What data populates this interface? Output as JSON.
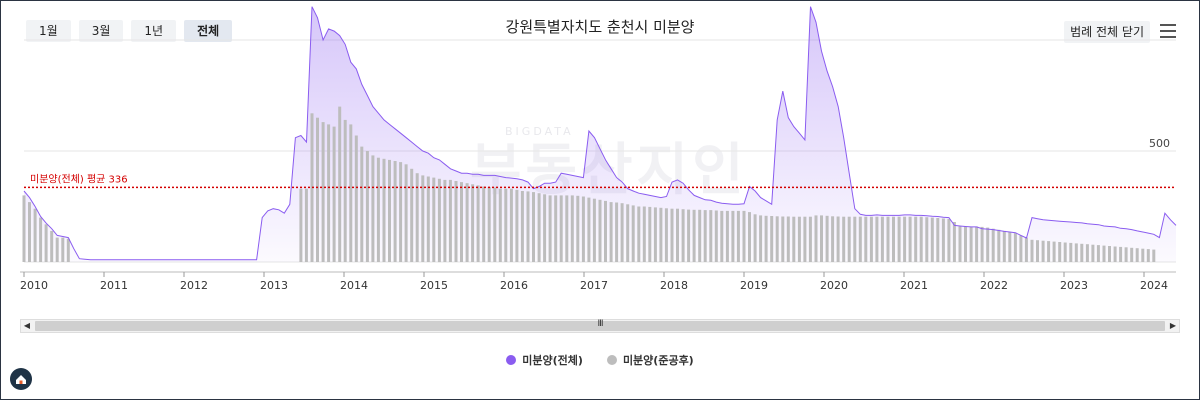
{
  "range_buttons": [
    "1월",
    "3월",
    "1년",
    "전체"
  ],
  "active_range": "전체",
  "title": "강원특별자치도 춘천시 미분양",
  "legend_toggle_label": "범례 전체 닫기",
  "watermark": "부동산지인",
  "watermark_sub": "BIGDATA",
  "legend": [
    {
      "name": "미분양(전체)",
      "color": "#8a5cf0"
    },
    {
      "name": "미분양(준공후)",
      "color": "#bdbdbd"
    }
  ],
  "scroll_grip": "III",
  "chart_data": {
    "type": "area",
    "x_ticks": [
      "2010",
      "2011",
      "2012",
      "2013",
      "2014",
      "2015",
      "2016",
      "2017",
      "2018",
      "2019",
      "2020",
      "2021",
      "2022",
      "2023",
      "2024"
    ],
    "y_tick_labels": [
      "500"
    ],
    "ylim": [
      0,
      1000
    ],
    "average_line": {
      "label": "미분양(전체) 평균 336",
      "value": 336,
      "color": "#d40000"
    },
    "series": [
      {
        "name": "미분양(전체)",
        "type": "area",
        "color": "#8a5cf0",
        "values": [
          320,
          290,
          250,
          205,
          175,
          150,
          120,
          115,
          110,
          60,
          15,
          12,
          10,
          10,
          10,
          10,
          10,
          10,
          10,
          10,
          10,
          10,
          10,
          10,
          10,
          10,
          10,
          10,
          10,
          10,
          10,
          10,
          10,
          10,
          10,
          10,
          10,
          10,
          10,
          10,
          10,
          10,
          10,
          200,
          230,
          240,
          235,
          220,
          260,
          560,
          570,
          540,
          1150,
          1100,
          1000,
          1050,
          1040,
          1020,
          980,
          900,
          870,
          800,
          750,
          700,
          670,
          640,
          620,
          600,
          580,
          560,
          540,
          520,
          500,
          490,
          470,
          460,
          440,
          420,
          410,
          400,
          400,
          395,
          395,
          390,
          390,
          390,
          385,
          380,
          378,
          375,
          370,
          360,
          330,
          340,
          355,
          355,
          360,
          400,
          395,
          390,
          385,
          380,
          590,
          560,
          510,
          460,
          420,
          380,
          360,
          330,
          320,
          310,
          305,
          300,
          295,
          290,
          295,
          360,
          370,
          355,
          325,
          300,
          290,
          280,
          278,
          270,
          265,
          262,
          260,
          260,
          262,
          340,
          320,
          290,
          275,
          260,
          640,
          770,
          650,
          610,
          580,
          550,
          1150,
          1080,
          950,
          860,
          790,
          700,
          560,
          400,
          240,
          215,
          210,
          210,
          212,
          210,
          210,
          210,
          210,
          212,
          212,
          210,
          210,
          208,
          206,
          205,
          202,
          200,
          165,
          162,
          160,
          158,
          158,
          150,
          148,
          146,
          142,
          138,
          135,
          132,
          120,
          108,
          200,
          195,
          190,
          188,
          186,
          184,
          182,
          180,
          178,
          176,
          172,
          170,
          168,
          162,
          160,
          158,
          152,
          150,
          146,
          140,
          135,
          130,
          125,
          110,
          220,
          190,
          165
        ]
      },
      {
        "name": "미분양(준공후)",
        "type": "bar",
        "color": "#bdbdbd",
        "values": [
          300,
          270,
          240,
          200,
          170,
          140,
          110,
          110,
          105,
          0,
          0,
          0,
          0,
          0,
          0,
          0,
          0,
          0,
          0,
          0,
          0,
          0,
          0,
          0,
          0,
          0,
          0,
          0,
          0,
          0,
          0,
          0,
          0,
          0,
          0,
          0,
          0,
          0,
          0,
          0,
          0,
          0,
          0,
          0,
          0,
          0,
          0,
          0,
          0,
          0,
          330,
          330,
          670,
          650,
          630,
          620,
          610,
          700,
          640,
          620,
          570,
          520,
          500,
          480,
          470,
          465,
          460,
          455,
          450,
          440,
          420,
          400,
          390,
          385,
          380,
          375,
          370,
          370,
          365,
          360,
          355,
          350,
          345,
          340,
          338,
          335,
          330,
          330,
          330,
          325,
          320,
          318,
          315,
          310,
          305,
          300,
          300,
          300,
          300,
          300,
          298,
          295,
          290,
          285,
          280,
          275,
          270,
          268,
          265,
          260,
          255,
          250,
          250,
          248,
          246,
          244,
          242,
          240,
          240,
          238,
          236,
          235,
          235,
          234,
          234,
          232,
          230,
          230,
          230,
          230,
          230,
          225,
          215,
          210,
          208,
          207,
          206,
          205,
          205,
          204,
          204,
          204,
          204,
          210,
          210,
          208,
          206,
          205,
          204,
          204,
          204,
          204,
          204,
          204,
          204,
          204,
          204,
          204,
          204,
          204,
          204,
          204,
          204,
          202,
          200,
          198,
          196,
          194,
          180,
          160,
          160,
          160,
          160,
          158,
          155,
          150,
          145,
          140,
          135,
          130,
          120,
          110,
          100,
          98,
          96,
          94,
          92,
          90,
          88,
          86,
          84,
          82,
          80,
          78,
          76,
          74,
          72,
          70,
          68,
          66,
          64,
          62,
          60,
          58,
          56
        ]
      }
    ],
    "grid": true,
    "legend_position": "bottom-center"
  }
}
